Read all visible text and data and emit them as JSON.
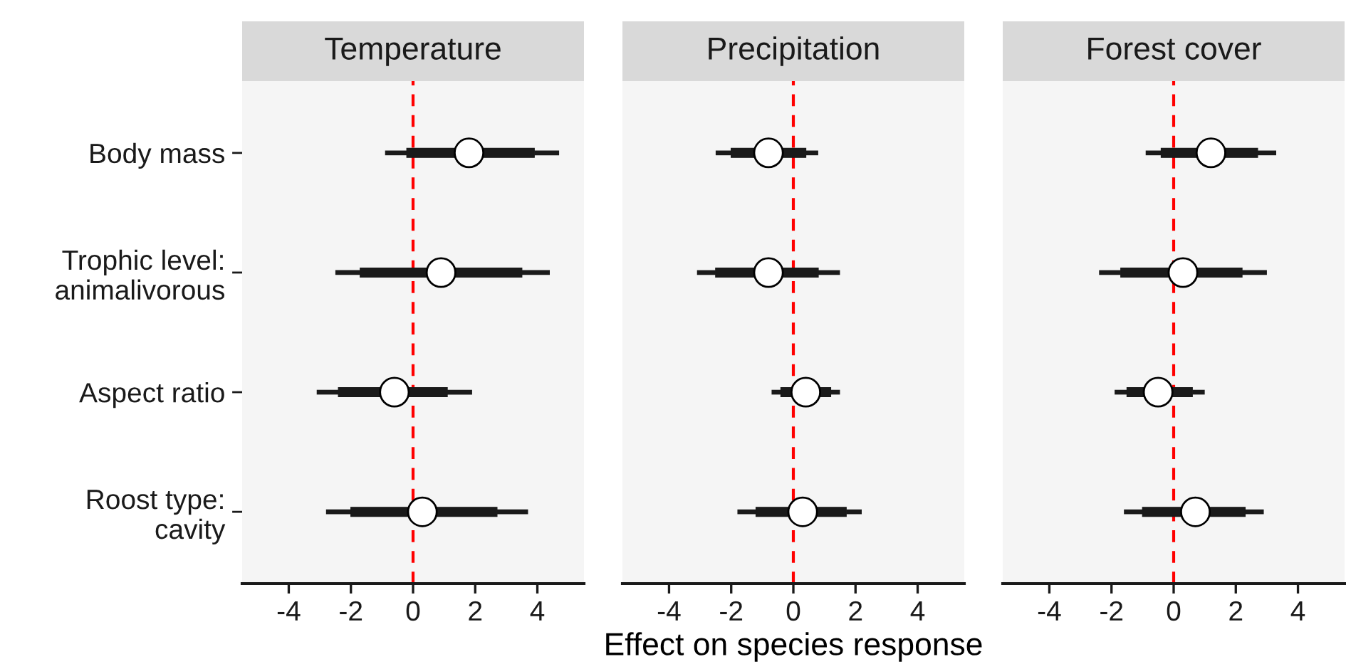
{
  "chart_data": [
    {
      "type": "box",
      "orientation": "horizontal",
      "title": "Temperature",
      "categories": [
        "Body mass",
        "Trophic level:\nanimalivorous",
        "Aspect ratio",
        "Roost type:\ncavity"
      ],
      "boxes": [
        {
          "low": -0.9,
          "q1": -0.2,
          "median": 1.8,
          "q3": 3.9,
          "high": 4.7
        },
        {
          "low": -2.5,
          "q1": -1.7,
          "median": 0.9,
          "q3": 3.5,
          "high": 4.4
        },
        {
          "low": -3.1,
          "q1": -2.4,
          "median": -0.6,
          "q3": 1.1,
          "high": 1.9
        },
        {
          "low": -2.8,
          "q1": -2.0,
          "median": 0.3,
          "q3": 2.7,
          "high": 3.7
        }
      ],
      "color": "#1a1a1a",
      "xlim": [
        -5.5,
        5.5
      ],
      "xticks": [
        -4,
        -2,
        0,
        2,
        4
      ],
      "ref_lines": [
        {
          "axis": "x",
          "value": 0,
          "color": "#ff0000",
          "line_style": "dashed"
        }
      ],
      "grid": false
    },
    {
      "type": "box",
      "orientation": "horizontal",
      "title": "Precipitation",
      "xlabel": "Effect on species response",
      "boxes": [
        {
          "low": -2.5,
          "q1": -2.0,
          "median": -0.8,
          "q3": 0.4,
          "high": 0.8
        },
        {
          "low": -3.1,
          "q1": -2.5,
          "median": -0.8,
          "q3": 0.8,
          "high": 1.5
        },
        {
          "low": -0.7,
          "q1": -0.4,
          "median": 0.4,
          "q3": 1.2,
          "high": 1.5
        },
        {
          "low": -1.8,
          "q1": -1.2,
          "median": 0.3,
          "q3": 1.7,
          "high": 2.2
        }
      ],
      "color": "#1a1a1a",
      "xlim": [
        -5.5,
        5.5
      ],
      "xticks": [
        -4,
        -2,
        0,
        2,
        4
      ],
      "ref_lines": [
        {
          "axis": "x",
          "value": 0,
          "color": "#ff0000",
          "line_style": "dashed"
        }
      ],
      "grid": false,
      "tick_labels": "x"
    },
    {
      "type": "box",
      "orientation": "horizontal",
      "title": "Forest cover",
      "boxes": [
        {
          "low": -0.9,
          "q1": -0.4,
          "median": 1.2,
          "q3": 2.7,
          "high": 3.3
        },
        {
          "low": -2.4,
          "q1": -1.7,
          "median": 0.3,
          "q3": 2.2,
          "high": 3.0
        },
        {
          "low": -1.9,
          "q1": -1.5,
          "median": -0.5,
          "q3": 0.6,
          "high": 1.0
        },
        {
          "low": -1.6,
          "q1": -1.0,
          "median": 0.7,
          "q3": 2.3,
          "high": 2.9
        }
      ],
      "color": "#1a1a1a",
      "xlim": [
        -5.5,
        5.5
      ],
      "xticks": [
        -4,
        -2,
        0,
        2,
        4
      ],
      "ref_lines": [
        {
          "axis": "x",
          "value": 0,
          "color": "#ff0000",
          "line_style": "dashed"
        }
      ],
      "grid": false,
      "tick_labels": "x"
    }
  ]
}
